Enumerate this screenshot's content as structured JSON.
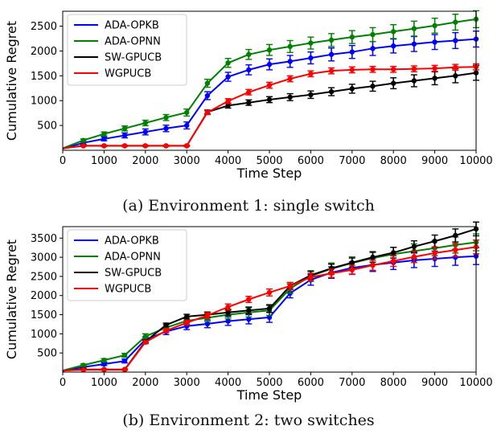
{
  "chart_data": [
    {
      "type": "line",
      "caption": "(a) Environment 1: single switch",
      "xlabel": "Time Step",
      "ylabel": "Cumulative Regret",
      "xlim": [
        0,
        10000
      ],
      "ylim": [
        0,
        2800
      ],
      "xticks": [
        "0",
        "1000",
        "2000",
        "3000",
        "4000",
        "5000",
        "6000",
        "7000",
        "8000",
        "9000",
        "10000"
      ],
      "yticks": [
        "500",
        "1000",
        "1500",
        "2000",
        "2500"
      ],
      "grid": false,
      "legend": "top-left",
      "x": [
        0,
        500,
        1000,
        1500,
        2000,
        2500,
        3000,
        3500,
        4000,
        4500,
        5000,
        5500,
        6000,
        6500,
        7000,
        7500,
        8000,
        8500,
        9000,
        9500,
        10000
      ],
      "series": [
        {
          "name": "ADA-OPKB",
          "color": "#0000ff",
          "values": [
            30,
            150,
            230,
            300,
            370,
            440,
            500,
            1100,
            1480,
            1620,
            1730,
            1790,
            1860,
            1930,
            1980,
            2050,
            2100,
            2140,
            2180,
            2210,
            2240
          ],
          "err": [
            10,
            30,
            40,
            50,
            60,
            65,
            70,
            80,
            90,
            100,
            110,
            120,
            120,
            130,
            130,
            140,
            140,
            150,
            150,
            160,
            160
          ]
        },
        {
          "name": "ADA-OPNN",
          "color": "#008000",
          "values": [
            40,
            200,
            330,
            440,
            550,
            660,
            760,
            1350,
            1760,
            1930,
            2020,
            2090,
            2160,
            2220,
            2280,
            2330,
            2390,
            2450,
            2510,
            2580,
            2640
          ],
          "err": [
            10,
            30,
            40,
            50,
            55,
            60,
            70,
            80,
            90,
            100,
            110,
            120,
            120,
            130,
            130,
            140,
            140,
            150,
            150,
            160,
            170
          ]
        },
        {
          "name": "SW-GPUCB",
          "color": "#000000",
          "values": [
            40,
            90,
            90,
            90,
            90,
            90,
            90,
            770,
            900,
            960,
            1020,
            1070,
            1120,
            1180,
            1240,
            1290,
            1350,
            1400,
            1450,
            1500,
            1560
          ],
          "err": [
            5,
            10,
            10,
            10,
            10,
            10,
            10,
            40,
            50,
            55,
            60,
            70,
            75,
            80,
            90,
            100,
            110,
            120,
            130,
            140,
            150
          ]
        },
        {
          "name": "WGPUCB",
          "color": "#ff0000",
          "values": [
            40,
            90,
            90,
            90,
            90,
            90,
            90,
            760,
            990,
            1170,
            1310,
            1440,
            1540,
            1600,
            1620,
            1630,
            1630,
            1640,
            1650,
            1670,
            1680
          ],
          "err": [
            5,
            10,
            10,
            10,
            10,
            10,
            10,
            40,
            50,
            55,
            60,
            60,
            60,
            60,
            60,
            60,
            60,
            60,
            60,
            60,
            60
          ]
        }
      ]
    },
    {
      "type": "line",
      "caption": "(b) Environment 2: two switches",
      "xlabel": "Time Step",
      "ylabel": "Cumulative Regret",
      "xlim": [
        0,
        10000
      ],
      "ylim": [
        0,
        3800
      ],
      "xticks": [
        "0",
        "1000",
        "2000",
        "3000",
        "4000",
        "5000",
        "6000",
        "7000",
        "8000",
        "9000",
        "10000"
      ],
      "yticks": [
        "500",
        "1000",
        "1500",
        "2000",
        "2500",
        "3000",
        "3500"
      ],
      "grid": false,
      "legend": "top-left",
      "x": [
        0,
        500,
        1000,
        1500,
        2000,
        2500,
        3000,
        3500,
        4000,
        4500,
        5000,
        5500,
        6000,
        6500,
        7000,
        7500,
        8000,
        8500,
        9000,
        9500,
        10000
      ],
      "series": [
        {
          "name": "ADA-OPKB",
          "color": "#0000ff",
          "values": [
            30,
            130,
            210,
            290,
            850,
            1060,
            1200,
            1260,
            1330,
            1380,
            1430,
            2060,
            2410,
            2600,
            2720,
            2800,
            2860,
            2920,
            2960,
            3000,
            3030
          ],
          "err": [
            10,
            30,
            40,
            50,
            70,
            80,
            90,
            100,
            110,
            120,
            130,
            120,
            140,
            150,
            160,
            170,
            180,
            190,
            200,
            210,
            220
          ]
        },
        {
          "name": "ADA-OPNN",
          "color": "#008000",
          "values": [
            40,
            180,
            310,
            440,
            930,
            1160,
            1340,
            1420,
            1500,
            1560,
            1610,
            2180,
            2510,
            2700,
            2850,
            2980,
            3080,
            3160,
            3240,
            3320,
            3390
          ],
          "err": [
            10,
            30,
            40,
            50,
            70,
            80,
            90,
            100,
            110,
            120,
            130,
            120,
            140,
            150,
            160,
            170,
            180,
            190,
            200,
            210,
            220
          ]
        },
        {
          "name": "SW-GPUCB",
          "color": "#000000",
          "values": [
            40,
            70,
            70,
            70,
            800,
            1230,
            1450,
            1500,
            1560,
            1610,
            1660,
            2250,
            2530,
            2710,
            2860,
            3000,
            3120,
            3280,
            3420,
            3570,
            3740
          ],
          "err": [
            5,
            10,
            10,
            10,
            40,
            50,
            60,
            70,
            80,
            90,
            100,
            90,
            100,
            110,
            120,
            130,
            140,
            150,
            160,
            170,
            180
          ]
        },
        {
          "name": "WGPUCB",
          "color": "#ff0000",
          "values": [
            40,
            60,
            60,
            60,
            780,
            1080,
            1290,
            1480,
            1700,
            1900,
            2080,
            2250,
            2480,
            2580,
            2670,
            2790,
            2900,
            3010,
            3110,
            3190,
            3270
          ],
          "err": [
            5,
            10,
            10,
            10,
            40,
            50,
            60,
            70,
            80,
            80,
            90,
            90,
            100,
            110,
            120,
            130,
            140,
            150,
            160,
            170,
            180
          ]
        }
      ]
    }
  ]
}
